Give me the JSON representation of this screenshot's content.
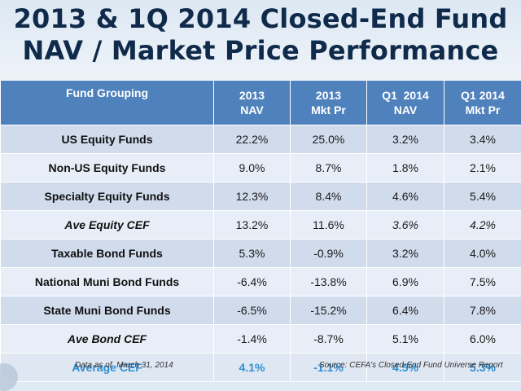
{
  "title": {
    "line1": "2013 & 1Q 2014 Closed-End Fund",
    "line2": "NAV / Market Price Performance"
  },
  "table": {
    "headers": [
      {
        "line1": "Fund Grouping",
        "line2": ""
      },
      {
        "line1": "2013",
        "line2": "NAV"
      },
      {
        "line1": "2013",
        "line2": "Mkt Pr"
      },
      {
        "line1": "Q1  2014",
        "line2": "NAV"
      },
      {
        "line1": "Q1 2014",
        "line2": "Mkt Pr"
      }
    ],
    "rows": [
      {
        "label": "US Equity Funds",
        "values": [
          "22.2%",
          "25.0%",
          "3.2%",
          "3.4%"
        ]
      },
      {
        "label": "Non-US Equity Funds",
        "values": [
          "9.0%",
          "8.7%",
          "1.8%",
          "2.1%"
        ]
      },
      {
        "label": "Specialty Equity Funds",
        "values": [
          "12.3%",
          "8.4%",
          "4.6%",
          "5.4%"
        ]
      },
      {
        "label": "Ave Equity CEF",
        "values": [
          "13.2%",
          "11.6%",
          "3.6%",
          "4.2%"
        ]
      },
      {
        "label": "Taxable Bond Funds",
        "values": [
          "5.3%",
          "-0.9%",
          "3.2%",
          "4.0%"
        ]
      },
      {
        "label": "National Muni Bond Funds",
        "values": [
          "-6.4%",
          "-13.8%",
          "6.9%",
          "7.5%"
        ]
      },
      {
        "label": "State Muni Bond Funds",
        "values": [
          "-6.5%",
          "-15.2%",
          "6.4%",
          "7.8%"
        ]
      },
      {
        "label": "Ave Bond CEF",
        "values": [
          "-1.4%",
          "-8.7%",
          "5.1%",
          "6.0%"
        ]
      },
      {
        "label": "Average CEF",
        "values": [
          "4.1%",
          "-1.1%",
          "4.5%",
          "5.3%"
        ]
      }
    ]
  },
  "footer": {
    "date_note": "Data as of  March 31, 2014",
    "source": "Source: CEFA's Closed-End Fund Universe Report"
  },
  "colors": {
    "title": "#0f2a4a",
    "header_bg": "#4f81bd",
    "row_dark": "#d0dbec",
    "row_light": "#e8eef7",
    "average_text": "#2e8fd3"
  }
}
